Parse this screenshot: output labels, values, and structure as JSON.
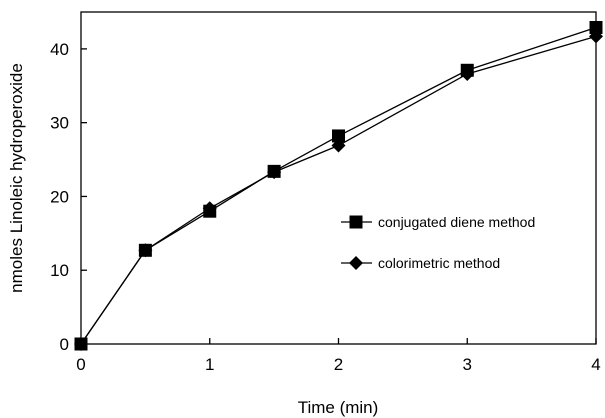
{
  "chart_data": {
    "type": "line",
    "title": "",
    "xlabel": "Time (min)",
    "ylabel": "nmoles Linoleic hydroperoxide",
    "xlim": [
      0,
      4
    ],
    "ylim": [
      0,
      45
    ],
    "xticks": [
      0,
      1,
      2,
      3,
      4
    ],
    "yticks": [
      0,
      10,
      20,
      30,
      40
    ],
    "grid": false,
    "legend_position": "center-right",
    "series": [
      {
        "name": "conjugated diene method",
        "marker": "square",
        "color": "#000000",
        "x": [
          0,
          0.5,
          1,
          1.5,
          2,
          3,
          4
        ],
        "y": [
          0,
          12.7,
          18.0,
          23.4,
          28.2,
          37.1,
          42.9
        ]
      },
      {
        "name": "colorimetric method",
        "marker": "diamond",
        "color": "#000000",
        "x": [
          0,
          0.5,
          1,
          1.5,
          2,
          3,
          4
        ],
        "y": [
          0,
          12.7,
          18.4,
          23.3,
          26.9,
          36.6,
          41.7
        ]
      }
    ]
  }
}
